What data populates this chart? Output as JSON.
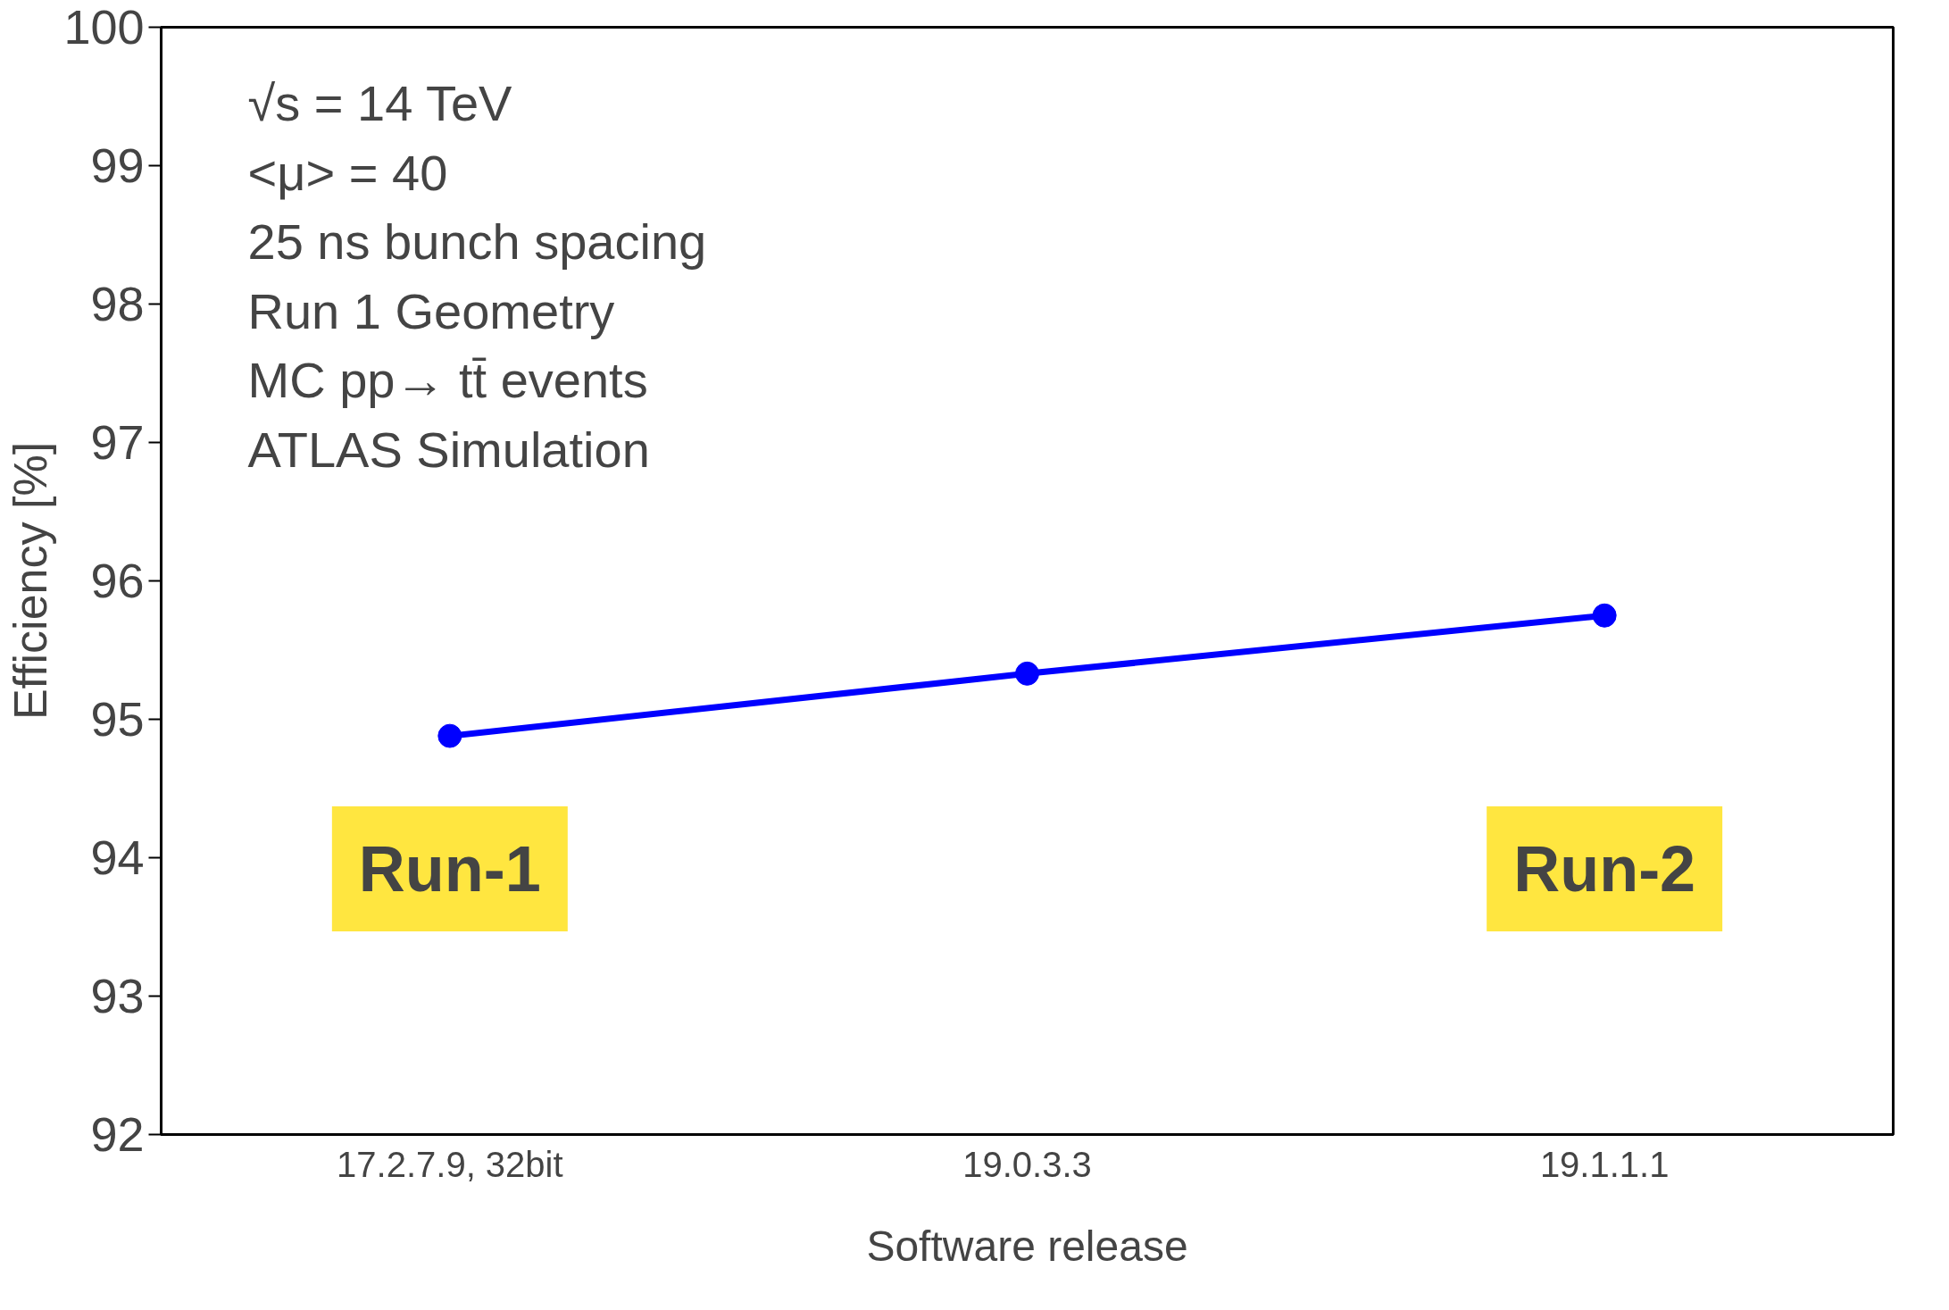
{
  "chart_data": {
    "type": "line",
    "xlabel": "Software release",
    "ylabel": "Efficiency [%]",
    "categories": [
      "17.2.7.9, 32bit",
      "19.0.3.3",
      "19.1.1.1"
    ],
    "series": [
      {
        "color": "#0000ff",
        "values": [
          94.88,
          95.33,
          95.75
        ]
      }
    ],
    "ylim": [
      92,
      100
    ],
    "yticks": [
      92,
      93,
      94,
      95,
      96,
      97,
      98,
      99,
      100
    ],
    "marker": "circle",
    "line_style": "solid",
    "grid": false,
    "annotations": [
      "√s = 14 TeV",
      "<μ> = 40",
      "25 ns bunch spacing",
      "Run 1 Geometry",
      "MC pp→ tt̄ events",
      "ATLAS Simulation",
      "Run-1",
      "Run-2"
    ]
  }
}
